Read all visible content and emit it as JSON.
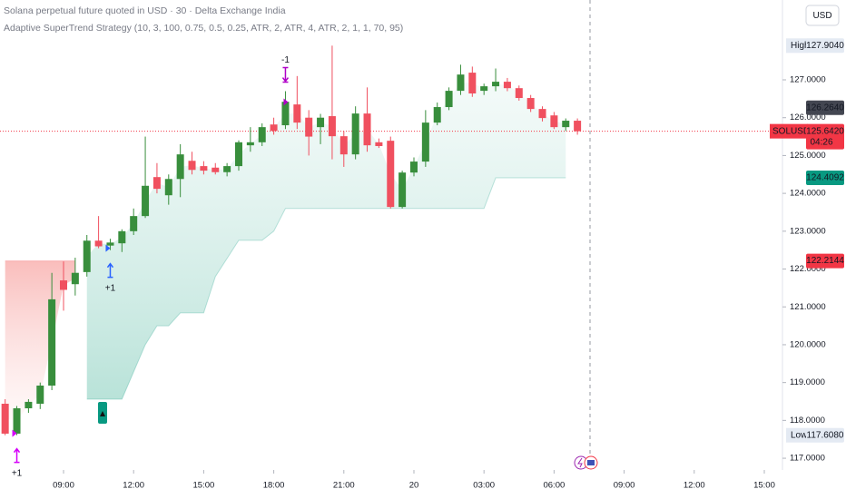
{
  "chart_data": {
    "type": "candlestick",
    "title": "Solana perpetual future quoted in USD · 30 · Delta Exchange India",
    "subtitle": "Adaptive SuperTrend Strategy (10, 3, 100, 0.75, 0.5, 0.25, ATR, 2, ATR, 4, ATR, 2, 1, 1, 70, 95)",
    "currency": "USD",
    "x": [
      6.5,
      7,
      7.5,
      8,
      8.5,
      9,
      9.5,
      10,
      10.5,
      11,
      11.5,
      12,
      12.5,
      13,
      13.5,
      14,
      14.5,
      15,
      15.5,
      16,
      16.5,
      17,
      17.5,
      18,
      18.5,
      19,
      19.5,
      20,
      20.5,
      21,
      21.5,
      22,
      22.5,
      23,
      23.5,
      24,
      24.5,
      25,
      25.5,
      26,
      26.5,
      27,
      27.5,
      28,
      28.5,
      29,
      29.5,
      30,
      30.5,
      31
    ],
    "open": [
      118.44,
      117.65,
      118.32,
      118.44,
      118.92,
      121.7,
      121.6,
      121.92,
      122.75,
      122.62,
      122.68,
      123.0,
      123.4,
      124.43,
      123.95,
      124.38,
      124.86,
      124.72,
      124.68,
      124.56,
      124.72,
      125.27,
      125.35,
      125.82,
      125.8,
      126.35,
      126.0,
      125.75,
      126.04,
      125.51,
      125.03,
      126.11,
      125.35,
      125.39,
      123.64,
      124.55,
      124.84,
      125.87,
      126.28,
      126.71,
      127.19,
      126.71,
      126.83,
      126.95,
      126.78,
      126.52,
      126.23,
      126.06,
      125.75,
      125.92
    ],
    "high": [
      118.56,
      118.38,
      118.56,
      119.0,
      121.9,
      122.2,
      122.3,
      122.9,
      123.4,
      122.8,
      123.05,
      123.6,
      125.5,
      124.8,
      124.5,
      125.3,
      125.1,
      124.85,
      124.8,
      124.8,
      125.4,
      125.75,
      125.85,
      126.0,
      126.7,
      127.1,
      126.2,
      126.1,
      127.904,
      125.65,
      126.3,
      126.8,
      125.45,
      125.5,
      124.6,
      124.95,
      126.2,
      126.4,
      126.8,
      127.4,
      127.35,
      126.9,
      127.3,
      127.05,
      126.85,
      126.6,
      126.3,
      126.15,
      125.98,
      125.98
    ],
    "low": [
      117.608,
      117.61,
      118.2,
      118.3,
      118.8,
      120.9,
      121.3,
      121.8,
      122.55,
      122.5,
      122.45,
      122.9,
      123.35,
      124.0,
      123.7,
      123.9,
      124.5,
      124.5,
      124.5,
      124.45,
      124.6,
      125.1,
      125.25,
      125.55,
      125.7,
      125.7,
      125.0,
      125.3,
      124.9,
      124.7,
      124.9,
      125.1,
      125.2,
      123.6,
      123.6,
      124.45,
      124.7,
      125.8,
      126.2,
      126.6,
      126.55,
      126.6,
      126.7,
      126.7,
      126.45,
      126.15,
      125.9,
      125.7,
      125.65,
      125.55
    ],
    "close": [
      117.65,
      118.32,
      118.49,
      118.92,
      121.2,
      121.45,
      121.9,
      122.75,
      122.6,
      122.7,
      123.0,
      123.4,
      124.2,
      124.12,
      124.38,
      125.03,
      124.62,
      124.6,
      124.56,
      124.72,
      125.35,
      125.35,
      125.75,
      125.65,
      126.42,
      125.87,
      125.5,
      126.0,
      125.51,
      125.03,
      126.11,
      125.27,
      125.25,
      123.64,
      124.55,
      124.84,
      125.87,
      126.28,
      126.71,
      127.14,
      126.64,
      126.83,
      126.95,
      126.78,
      126.52,
      126.23,
      125.99,
      125.75,
      125.92,
      125.642
    ],
    "up_color": "#388e3c",
    "down_color": "#f0505f",
    "trend_down": [
      122.2144,
      122.2144,
      122.2144,
      122.2144,
      122.2144,
      122.2144,
      122.2144,
      null,
      null,
      null,
      null,
      null,
      null,
      null,
      null,
      null,
      null,
      null,
      null,
      null,
      null,
      null,
      null,
      null,
      null,
      null,
      null,
      null,
      null,
      null,
      null,
      null,
      null,
      null,
      null,
      null,
      null,
      null,
      null,
      null,
      null,
      null,
      null,
      null,
      null,
      null,
      null,
      null,
      null,
      null
    ],
    "trend_up": [
      null,
      null,
      null,
      null,
      null,
      null,
      null,
      118.56,
      118.56,
      118.56,
      118.56,
      119.28,
      120.0,
      120.5,
      120.5,
      120.84,
      120.84,
      120.84,
      121.8,
      122.28,
      122.76,
      122.76,
      122.76,
      123.0,
      123.6,
      123.6,
      123.6,
      123.6,
      123.6,
      123.6,
      123.6,
      123.6,
      123.6,
      123.6,
      123.6,
      123.6,
      123.6,
      123.6,
      123.6,
      123.6,
      123.6,
      123.6,
      124.4092,
      124.4092,
      124.4092,
      124.4092,
      124.4092,
      124.4092,
      124.4092,
      null
    ],
    "signals": [
      {
        "x": 7,
        "label": "+1",
        "side": "long",
        "color": "#d500f9"
      },
      {
        "x": 11,
        "label": "+1",
        "side": "long",
        "color": "#2962ff"
      },
      {
        "x": 18.5,
        "label": "-1",
        "side": "short",
        "color": "#b000c8"
      }
    ],
    "xlim": [
      6.28,
      39.7
    ],
    "ylim": [
      116.69,
      129.11
    ],
    "xticks": [
      {
        "value": 9,
        "label": "09:00"
      },
      {
        "value": 12,
        "label": "12:00"
      },
      {
        "value": 15,
        "label": "15:00"
      },
      {
        "value": 18,
        "label": "18:00"
      },
      {
        "value": 21,
        "label": "21:00"
      },
      {
        "value": 24,
        "label": "20"
      },
      {
        "value": 27,
        "label": "03:00"
      },
      {
        "value": 30,
        "label": "06:00"
      },
      {
        "value": 33,
        "label": "09:00"
      },
      {
        "value": 36,
        "label": "12:00"
      },
      {
        "value": 39,
        "label": "15:00"
      }
    ],
    "yticks": [
      {
        "value": 117,
        "label": "117.0000"
      },
      {
        "value": 118,
        "label": "118.0000"
      },
      {
        "value": 119,
        "label": "119.0000"
      },
      {
        "value": 120,
        "label": "120.0000"
      },
      {
        "value": 121,
        "label": "121.0000"
      },
      {
        "value": 122,
        "label": "122.0000"
      },
      {
        "value": 123,
        "label": "123.0000"
      },
      {
        "value": 124,
        "label": "124.0000"
      },
      {
        "value": 125,
        "label": "125.0000"
      },
      {
        "value": 126,
        "label": "126.0000"
      },
      {
        "value": 127,
        "label": "127.0000"
      }
    ],
    "last_price": {
      "value": 125.642,
      "label": "125.6420",
      "name": "SOLUSD.P",
      "countdown": "04:26",
      "color": "#f23645"
    },
    "tags": [
      {
        "value": 127.904,
        "label": "127.9040",
        "name": "High",
        "bg": "#e4eaf3",
        "fg": "#131722"
      },
      {
        "value": 126.264,
        "label": "126.2640",
        "bg": "#434651",
        "fg": "#ffffff"
      },
      {
        "value": 124.4092,
        "label": "124.4092",
        "bg": "#089981",
        "fg": "#ffffff"
      },
      {
        "value": 122.2144,
        "label": "122.2144",
        "bg": "#f23645",
        "fg": "#ffffff"
      },
      {
        "value": 117.608,
        "label": "117.6080",
        "name": "Low",
        "bg": "#e4eaf3",
        "fg": "#131722"
      }
    ]
  }
}
